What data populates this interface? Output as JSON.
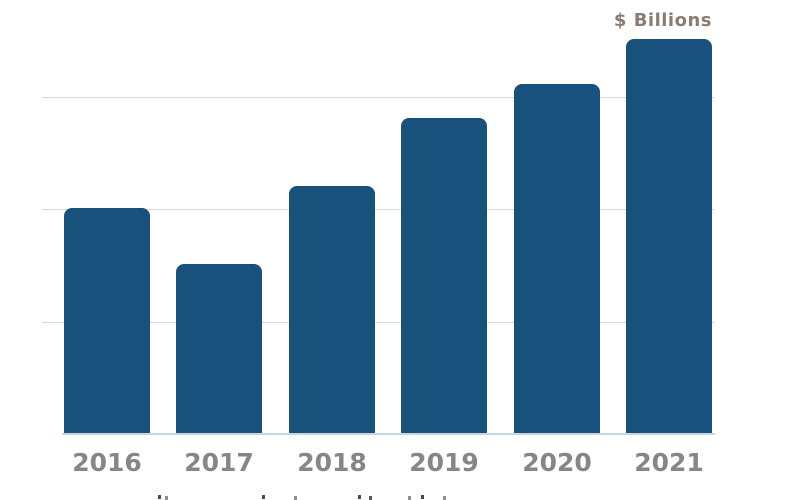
{
  "chart": {
    "unit_label": "$ Billions",
    "colors": {
      "bar": "#18517c",
      "gridline": "#d8d8d8",
      "baseline": "#c7d7e2",
      "axis_label": "#868686",
      "unit_label": "#8a7c70"
    }
  },
  "chart_data": {
    "type": "bar",
    "title": "",
    "xlabel": "",
    "ylabel": "$ Billions",
    "categories": [
      "2016",
      "2017",
      "2018",
      "2019",
      "2020",
      "2021"
    ],
    "values": [
      2.0,
      1.5,
      2.2,
      2.8,
      3.1,
      3.5
    ],
    "ylim": [
      0,
      3.9
    ],
    "gridline_values": [
      1,
      2,
      3
    ],
    "value_axis_tick_labels_visible": false,
    "legend": "none",
    "grid": "horizontal-only"
  }
}
